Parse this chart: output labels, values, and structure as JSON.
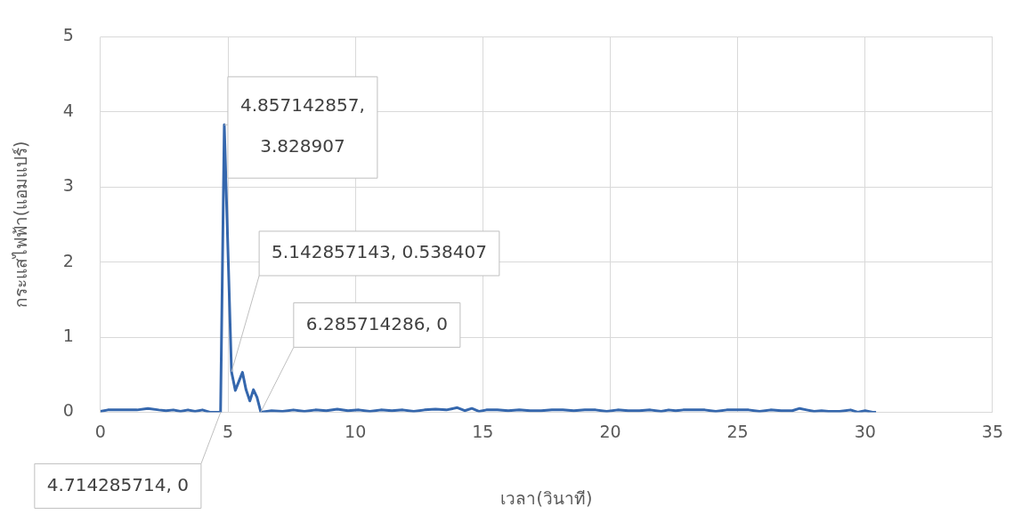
{
  "chart_data": {
    "type": "line",
    "xlabel": "เวลา(วินาที)",
    "ylabel": "กระแสไฟฟ้า(แอมแปร์)",
    "xlim": [
      0,
      35
    ],
    "xticks": [
      0,
      5,
      10,
      15,
      20,
      25,
      30,
      35
    ],
    "ylim": [
      0,
      5
    ],
    "yticks": [
      0,
      1,
      2,
      3,
      4,
      5
    ],
    "grid": true,
    "legend": false,
    "marker": "none",
    "line_style": "solid",
    "series": [
      {
        "color": "#3567ad",
        "x": [
          0,
          0.29,
          0.57,
          1.0,
          1.43,
          1.86,
          2.29,
          2.57,
          2.86,
          3.14,
          3.43,
          3.71,
          4.0,
          4.29,
          4.71,
          4.857,
          5.14,
          5.29,
          5.57,
          5.71,
          5.86,
          6.0,
          6.14,
          6.29,
          6.71,
          7.14,
          7.57,
          8.0,
          8.43,
          8.86,
          9.29,
          9.71,
          10.14,
          10.57,
          11.0,
          11.43,
          11.86,
          12.29,
          12.71,
          13.14,
          13.57,
          14.0,
          14.29,
          14.57,
          14.86,
          15.14,
          15.57,
          16.0,
          16.43,
          16.86,
          17.29,
          17.71,
          18.14,
          18.57,
          19.0,
          19.43,
          19.86,
          20.29,
          20.71,
          21.14,
          21.57,
          22.0,
          22.29,
          22.57,
          22.86,
          23.29,
          23.71,
          24.14,
          24.57,
          25.0,
          25.43,
          25.86,
          26.29,
          26.71,
          27.14,
          27.43,
          27.71,
          28.0,
          28.29,
          28.57,
          29.0,
          29.43,
          29.71,
          30.0,
          30.29,
          30.43
        ],
        "values": [
          0.01,
          0.03,
          0.03,
          0.03,
          0.03,
          0.05,
          0.03,
          0.02,
          0.03,
          0.01,
          0.03,
          0.01,
          0.03,
          0,
          0,
          3.828907,
          0.538407,
          0.29,
          0.53,
          0.3,
          0.15,
          0.3,
          0.2,
          0,
          0.02,
          0.01,
          0.03,
          0.01,
          0.03,
          0.02,
          0.04,
          0.02,
          0.03,
          0.01,
          0.03,
          0.02,
          0.03,
          0.01,
          0.03,
          0.04,
          0.03,
          0.06,
          0.02,
          0.05,
          0.01,
          0.03,
          0.03,
          0.02,
          0.03,
          0.02,
          0.02,
          0.03,
          0.03,
          0.02,
          0.03,
          0.03,
          0.01,
          0.03,
          0.02,
          0.02,
          0.03,
          0.01,
          0.03,
          0.02,
          0.03,
          0.03,
          0.03,
          0.01,
          0.03,
          0.03,
          0.03,
          0.01,
          0.03,
          0.02,
          0.02,
          0.05,
          0.03,
          0.01,
          0.02,
          0.01,
          0.01,
          0.03,
          0.0,
          0.02,
          0.0,
          0.0
        ]
      }
    ],
    "annotations": [
      {
        "text": "4.857142857, 3.828907",
        "x": 4.857142857,
        "y": 3.828907
      },
      {
        "text": "5.142857143, 0.538407",
        "x": 5.142857143,
        "y": 0.538407
      },
      {
        "text": "6.285714286, 0",
        "x": 6.285714286,
        "y": 0
      },
      {
        "text": "4.714285714, 0",
        "x": 4.714285714,
        "y": 0
      }
    ]
  }
}
